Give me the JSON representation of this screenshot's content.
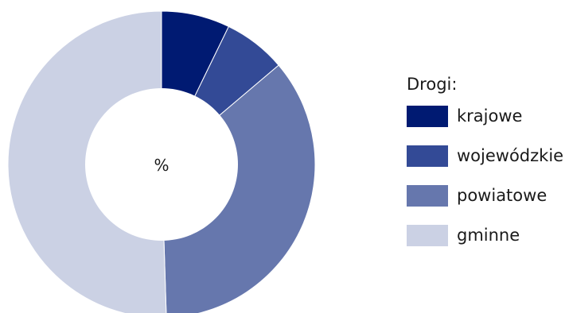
{
  "chart_data": {
    "type": "pie",
    "donut": true,
    "center_label": "%",
    "legend_title": "Drogi:",
    "legend_position": "right",
    "categories": [
      "krajowe",
      "wojewódzkie",
      "powiatowe",
      "gminne"
    ],
    "values": [
      7.2,
      6.6,
      35.7,
      50.5
    ],
    "colors": [
      "#001a72",
      "#334a96",
      "#6677ad",
      "#cbd1e4"
    ]
  }
}
